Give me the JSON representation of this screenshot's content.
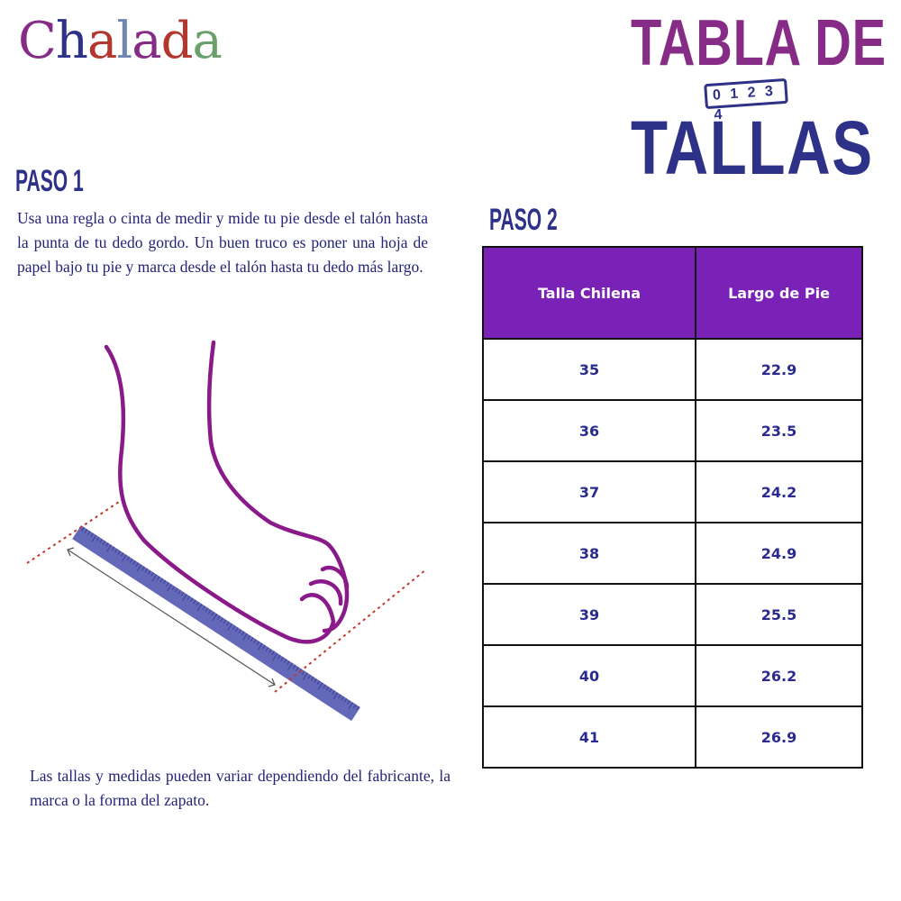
{
  "brand": {
    "logo": "Chalada",
    "logo_colors": [
      "#862b86",
      "#2e3188",
      "#b3372f",
      "#6f86b0",
      "#862b86",
      "#b3372f",
      "#6aa06a",
      "#b3372f"
    ]
  },
  "title": {
    "line1": "TABLA DE",
    "line2": "TALLAS",
    "ruler_numbers": "0 1 2 3 4",
    "colors": {
      "line1": "#862b86",
      "line2": "#2e3188"
    }
  },
  "step1": {
    "heading": "PASO 1",
    "text": "Usa una regla o cinta de medir y mide tu pie desde el talón hasta la punta de tu dedo gordo. Un buen truco es poner una hoja de papel bajo tu pie y marca desde el talón hasta tu dedo más largo."
  },
  "illustration": {
    "icon": "foot-measuring-ruler-icon",
    "colors": {
      "foot": "#8a1a8a",
      "ruler": "#6468b8",
      "guides": "#c0392b"
    }
  },
  "note": "Las tallas y medidas pueden variar dependiendo del fabricante, la marca o la forma del zapato.",
  "step2": {
    "heading": "PASO 2"
  },
  "table": {
    "headers": [
      "Talla Chilena",
      "Largo de Pie"
    ],
    "header_color": "#7a22b8",
    "rows": [
      [
        "35",
        "22.9"
      ],
      [
        "36",
        "23.5"
      ],
      [
        "37",
        "24.2"
      ],
      [
        "38",
        "24.9"
      ],
      [
        "39",
        "25.5"
      ],
      [
        "40",
        "26.2"
      ],
      [
        "41",
        "26.9"
      ]
    ]
  }
}
